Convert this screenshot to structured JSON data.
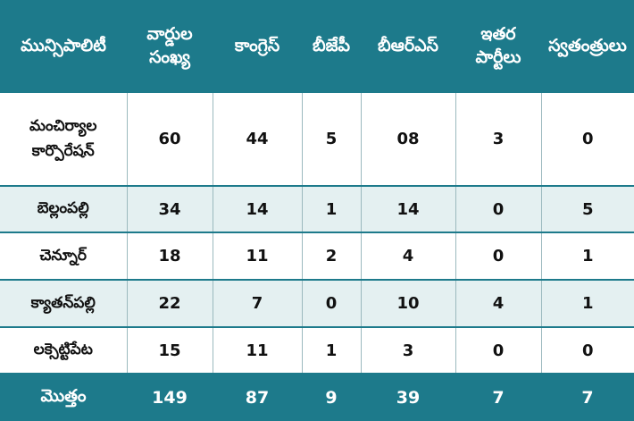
{
  "headers": {
    "municipality": "మున్సిపాలిటీ",
    "wards_line1": "వార్డుల",
    "wards_line2": "సంఖ్య",
    "congress": "కాంగ్రెస్",
    "bjp": "బీజేపీ",
    "brs": "బీఆర్ఎస్",
    "others_line1": "ఇతర",
    "others_line2": "పార్టీలు",
    "independents": "స్వతంత్రులు"
  },
  "rows": [
    {
      "name_line1": "మంచిర్యాల",
      "name_line2": "కార్పొరేషన్",
      "wards": "60",
      "congress": "44",
      "bjp": "5",
      "brs": "08",
      "others": "3",
      "independents": "0"
    },
    {
      "name_line1": "బెల్లంపల్లి",
      "name_line2": "",
      "wards": "34",
      "congress": "14",
      "bjp": "1",
      "brs": "14",
      "others": "0",
      "independents": "5"
    },
    {
      "name_line1": "చెన్నూర్",
      "name_line2": "",
      "wards": "18",
      "congress": "11",
      "bjp": "2",
      "brs": "4",
      "others": "0",
      "independents": "1"
    },
    {
      "name_line1": "క్యాతన్‌పల్లి",
      "name_line2": "",
      "wards": "22",
      "congress": "7",
      "bjp": "0",
      "brs": "10",
      "others": "4",
      "independents": "1"
    },
    {
      "name_line1": "లక్సెట్టిపేట",
      "name_line2": "",
      "wards": "15",
      "congress": "11",
      "bjp": "1",
      "brs": "3",
      "others": "0",
      "independents": "0"
    }
  ],
  "total": {
    "label": "మొత్తం",
    "wards": "149",
    "congress": "87",
    "bjp": "9",
    "brs": "39",
    "others": "7",
    "independents": "7"
  },
  "colors": {
    "header_bg": "#1d7a8b",
    "alt_row_bg": "#e4f0f1",
    "row_bg": "#ffffff"
  }
}
